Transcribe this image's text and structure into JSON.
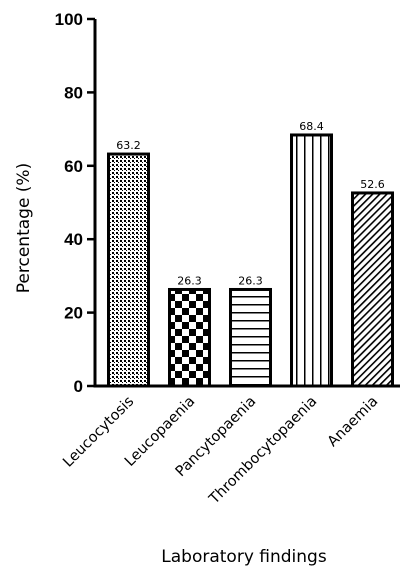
{
  "chart_data": {
    "type": "bar",
    "title": "",
    "xlabel": "Laboratory findings",
    "ylabel": "Percentage (%)",
    "ylim": [
      0,
      100
    ],
    "yticks": [
      0,
      20,
      40,
      60,
      80,
      100
    ],
    "grid": false,
    "categories": [
      "Leucocytosis",
      "Leucopaenia",
      "Pancytopaenia",
      "Thrombocytopaenia",
      "Anaemia"
    ],
    "values": [
      63.2,
      26.3,
      26.3,
      68.4,
      52.6
    ],
    "data_labels": [
      "63.2",
      "26.3",
      "26.3",
      "68.4",
      "52.6"
    ],
    "patterns": [
      "dots",
      "checkerboard",
      "horizontal-lines",
      "vertical-lines",
      "diagonal-lines"
    ]
  }
}
